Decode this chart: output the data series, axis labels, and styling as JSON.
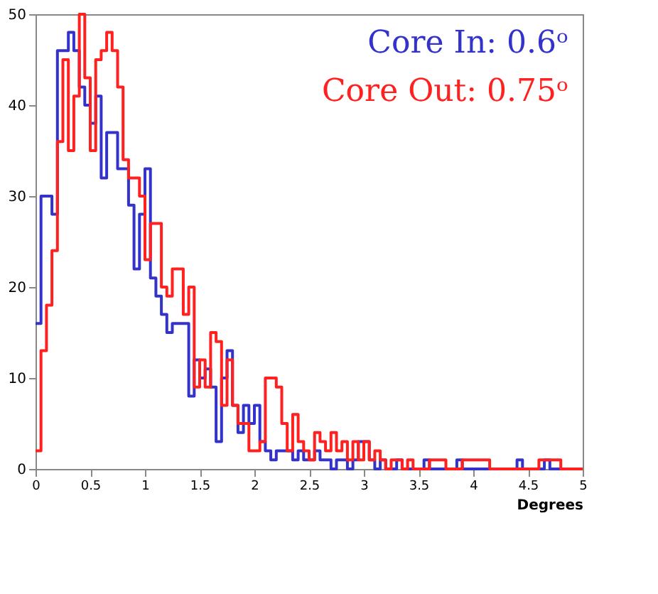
{
  "chart_data": {
    "type": "histogram",
    "xlabel": "Degrees",
    "bins": [
      0,
      0.05,
      0.1,
      0.15,
      0.2,
      0.25,
      0.3,
      0.35,
      0.4,
      0.45,
      0.5,
      0.55,
      0.6,
      0.65,
      0.7,
      0.75,
      0.8,
      0.85,
      0.9,
      0.95,
      1,
      1.05,
      1.1,
      1.15,
      1.2,
      1.25,
      1.3,
      1.35,
      1.4,
      1.45,
      1.5,
      1.55,
      1.6,
      1.65,
      1.7,
      1.75,
      1.8,
      1.85,
      1.9,
      1.95,
      2,
      2.05,
      2.1,
      2.15,
      2.2,
      2.25,
      2.3,
      2.35,
      2.4,
      2.45,
      2.5,
      2.55,
      2.6,
      2.65,
      2.7,
      2.75,
      2.8,
      2.85,
      2.9,
      2.95,
      3,
      3.05,
      3.1,
      3.15,
      3.2,
      3.25,
      3.3,
      3.35,
      3.4,
      3.45,
      3.5,
      3.55,
      3.6,
      3.65,
      3.7,
      3.75,
      3.8,
      3.85,
      3.9,
      3.95,
      4,
      4.05,
      4.1,
      4.15,
      4.2,
      4.25,
      4.3,
      4.35,
      4.4,
      4.45,
      4.5,
      4.55,
      4.6,
      4.65,
      4.7,
      4.75,
      4.8,
      4.85,
      4.9,
      4.95,
      5
    ],
    "series": [
      {
        "name": "Core In: 0.6ᵒ",
        "color": "#3333cc",
        "values": [
          16,
          30,
          30,
          28,
          46,
          46,
          48,
          46,
          42,
          40,
          38,
          41,
          32,
          37,
          37,
          33,
          33,
          29,
          22,
          28,
          33,
          21,
          19,
          17,
          15,
          16,
          16,
          16,
          8,
          12,
          10,
          11,
          9,
          3,
          10,
          13,
          7,
          4,
          7,
          5,
          7,
          3,
          2,
          1,
          2,
          2,
          2,
          1,
          2,
          1,
          1,
          2,
          1,
          1,
          0,
          1,
          1,
          0,
          1,
          3,
          3,
          1,
          0,
          1,
          0,
          0,
          1,
          0,
          0,
          0,
          0,
          1,
          0,
          0,
          0,
          0,
          0,
          1,
          0,
          0,
          0,
          0,
          0,
          0,
          0,
          0,
          0,
          0,
          1,
          0,
          0,
          0,
          0,
          1,
          0,
          0,
          0,
          0,
          0,
          0
        ]
      },
      {
        "name": "Core Out: 0.75ᵒ",
        "color": "#ff2020",
        "values": [
          2,
          13,
          18,
          24,
          36,
          45,
          35,
          41,
          50,
          43,
          35,
          45,
          46,
          48,
          46,
          42,
          34,
          32,
          32,
          30,
          23,
          27,
          27,
          20,
          19,
          22,
          22,
          17,
          20,
          9,
          12,
          9,
          15,
          14,
          7,
          12,
          7,
          5,
          5,
          2,
          2,
          3,
          10,
          10,
          9,
          5,
          2,
          6,
          3,
          2,
          1,
          4,
          3,
          2,
          4,
          2,
          3,
          1,
          3,
          1,
          3,
          1,
          2,
          1,
          0,
          1,
          1,
          0,
          1,
          0,
          0,
          0,
          1,
          1,
          1,
          0,
          0,
          0,
          1,
          1,
          1,
          1,
          1,
          0,
          0,
          0,
          0,
          0,
          0,
          0,
          0,
          0,
          1,
          1,
          1,
          1,
          0,
          0,
          0,
          0
        ]
      }
    ],
    "xlim": [
      0,
      5
    ],
    "xticks": [
      0,
      0.5,
      1,
      1.5,
      2,
      2.5,
      3,
      3.5,
      4,
      4.5,
      5
    ],
    "ylim": [
      0,
      50
    ],
    "yticks": [
      0,
      10,
      20,
      30,
      40,
      50
    ],
    "grid": false,
    "legend": "top right"
  }
}
